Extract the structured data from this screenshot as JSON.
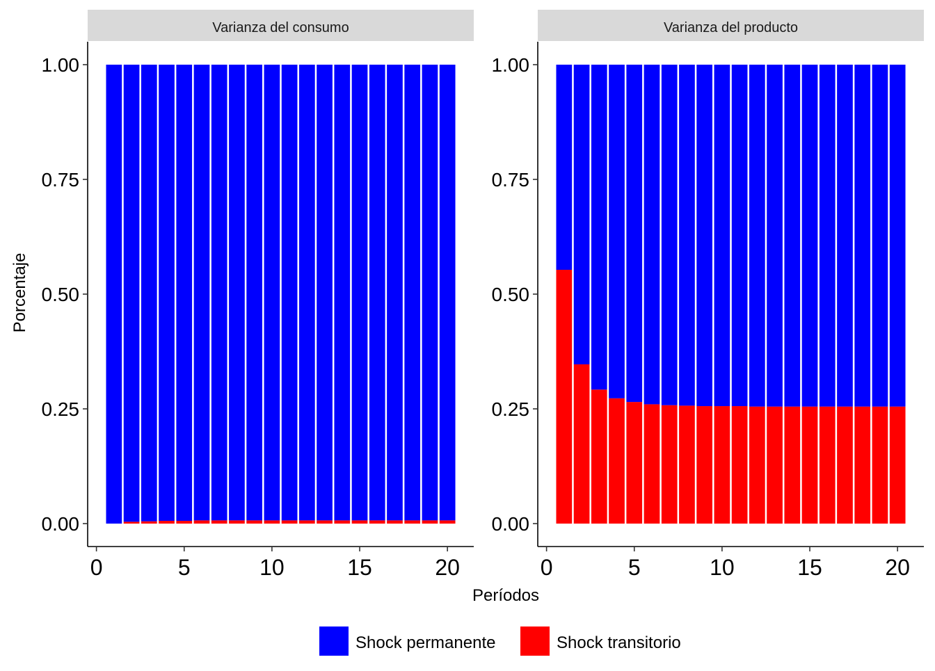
{
  "colors": {
    "permanent": "#0000FF",
    "transitory": "#FF0000",
    "strip_background": "#D9D9D9",
    "axis": "#000000"
  },
  "labels": {
    "xlabel": "Períodos",
    "ylabel": "Porcentaje"
  },
  "legend": {
    "position": "bottom",
    "items": [
      {
        "label": "Shock permanente",
        "color": "#0000FF"
      },
      {
        "label": "Shock transitorio",
        "color": "#FF0000"
      }
    ]
  },
  "chart_data": [
    {
      "type": "bar",
      "stacked": true,
      "title": "Varianza del consumo",
      "xlabel": "Períodos",
      "ylabel": "Porcentaje",
      "xlim": [
        -0.5,
        21.5
      ],
      "ylim": [
        0,
        1
      ],
      "xticks": [
        0,
        5,
        10,
        15,
        20
      ],
      "yticks": [
        0,
        0.25,
        0.5,
        0.75,
        1
      ],
      "ytick_labels": [
        "0.00",
        "0.25",
        "0.50",
        "0.75",
        "1.00"
      ],
      "grid": false,
      "x": [
        1,
        2,
        3,
        4,
        5,
        6,
        7,
        8,
        9,
        10,
        11,
        12,
        13,
        14,
        15,
        16,
        17,
        18,
        19,
        20
      ],
      "series": [
        {
          "name": "Shock transitorio",
          "values": [
            0,
            0.004,
            0.005,
            0.006,
            0.006,
            0.007,
            0.007,
            0.007,
            0.007,
            0.007,
            0.007,
            0.007,
            0.007,
            0.007,
            0.007,
            0.007,
            0.007,
            0.007,
            0.007,
            0.007
          ]
        },
        {
          "name": "Shock permanente",
          "values": [
            1,
            0.996,
            0.995,
            0.994,
            0.994,
            0.993,
            0.993,
            0.993,
            0.993,
            0.993,
            0.993,
            0.993,
            0.993,
            0.993,
            0.993,
            0.993,
            0.993,
            0.993,
            0.993,
            0.993
          ]
        }
      ]
    },
    {
      "type": "bar",
      "stacked": true,
      "title": "Varianza del producto",
      "xlabel": "Períodos",
      "ylabel": "Porcentaje",
      "xlim": [
        -0.5,
        21.5
      ],
      "ylim": [
        0,
        1
      ],
      "xticks": [
        0,
        5,
        10,
        15,
        20
      ],
      "yticks": [
        0,
        0.25,
        0.5,
        0.75,
        1
      ],
      "ytick_labels": [
        "0.00",
        "0.25",
        "0.50",
        "0.75",
        "1.00"
      ],
      "grid": false,
      "x": [
        1,
        2,
        3,
        4,
        5,
        6,
        7,
        8,
        9,
        10,
        11,
        12,
        13,
        14,
        15,
        16,
        17,
        18,
        19,
        20
      ],
      "series": [
        {
          "name": "Shock transitorio",
          "values": [
            0.553,
            0.347,
            0.292,
            0.273,
            0.265,
            0.26,
            0.258,
            0.257,
            0.256,
            0.256,
            0.256,
            0.255,
            0.255,
            0.255,
            0.255,
            0.255,
            0.255,
            0.255,
            0.255,
            0.255
          ]
        },
        {
          "name": "Shock permanente",
          "values": [
            0.447,
            0.653,
            0.708,
            0.727,
            0.735,
            0.74,
            0.742,
            0.743,
            0.744,
            0.744,
            0.744,
            0.745,
            0.745,
            0.745,
            0.745,
            0.745,
            0.745,
            0.745,
            0.745,
            0.745
          ]
        }
      ]
    }
  ]
}
